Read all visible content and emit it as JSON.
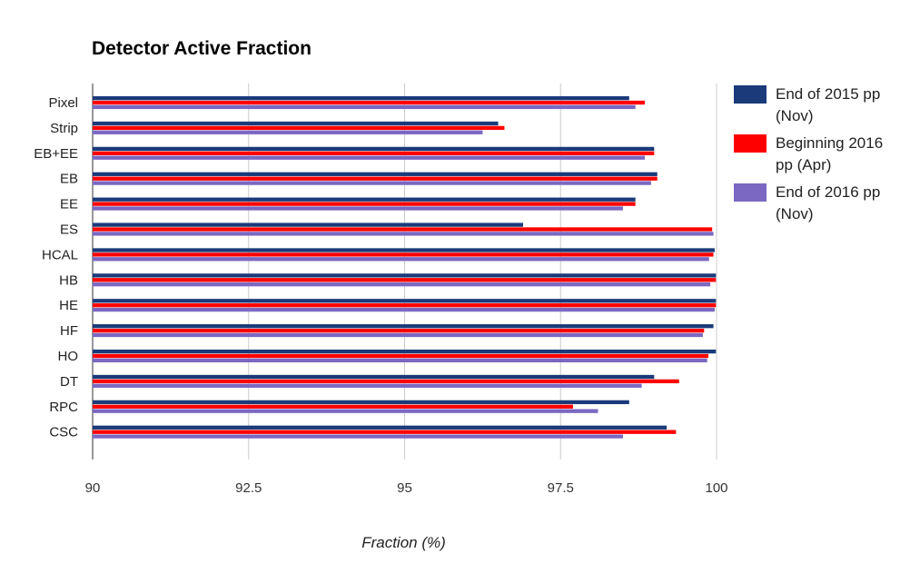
{
  "chart_data": {
    "type": "bar",
    "orientation": "horizontal",
    "title": "Detector Active Fraction",
    "xlabel": "Fraction (%)",
    "ylabel": "",
    "xlim": [
      90,
      100
    ],
    "xticks": [
      90,
      92.5,
      95,
      97.5,
      100
    ],
    "xtick_labels": [
      "90",
      "92.5",
      "95",
      "97.5",
      "100"
    ],
    "grid": "vertical",
    "legend_position": "right",
    "categories": [
      "Pixel",
      "Strip",
      "EB+EE",
      "EB",
      "EE",
      "ES",
      "HCAL",
      "HB",
      "HE",
      "HF",
      "HO",
      "DT",
      "RPC",
      "CSC"
    ],
    "series": [
      {
        "name": "End of 2015 pp (Nov)",
        "color": "#1a3a7a",
        "values": [
          98.6,
          96.5,
          99.0,
          99.05,
          98.7,
          96.9,
          99.97,
          99.99,
          99.99,
          99.95,
          99.99,
          99.0,
          98.6,
          99.2
        ]
      },
      {
        "name": "Beginning 2016 pp (Apr)",
        "color": "#ff0000",
        "values": [
          98.85,
          96.6,
          99.0,
          99.05,
          98.7,
          99.93,
          99.95,
          99.99,
          99.99,
          99.8,
          99.87,
          99.4,
          97.7,
          99.35
        ]
      },
      {
        "name": "End of 2016 pp (Nov)",
        "color": "#7b68c2",
        "values": [
          98.7,
          96.25,
          98.85,
          98.95,
          98.5,
          99.95,
          99.88,
          99.9,
          99.97,
          99.78,
          99.85,
          98.8,
          98.1,
          98.5
        ]
      }
    ]
  }
}
